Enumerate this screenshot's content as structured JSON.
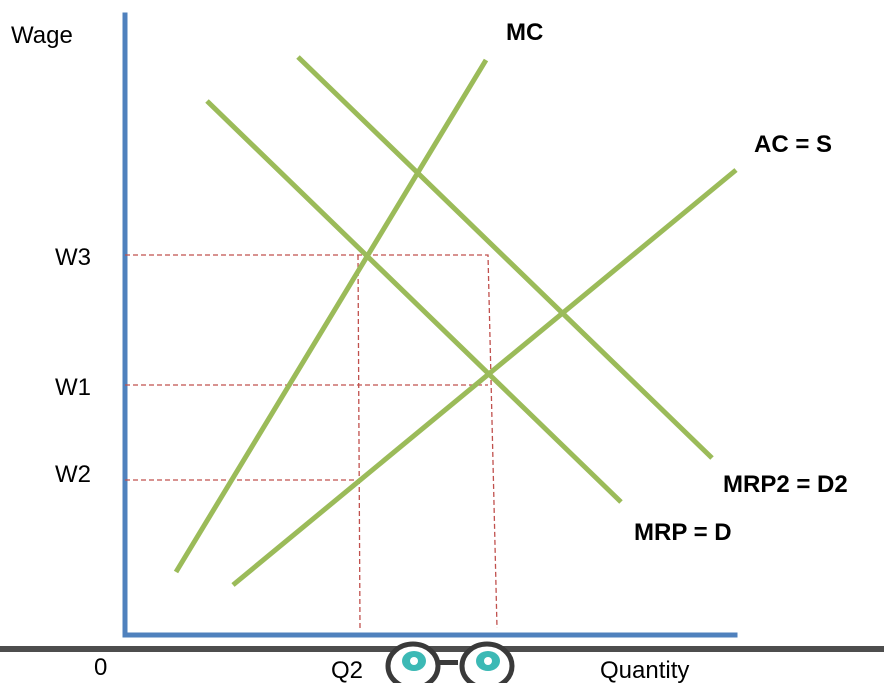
{
  "axes": {
    "y_label": "Wage",
    "x_label": "Quantity",
    "origin_label": "0"
  },
  "wage_levels": {
    "w3": "W3",
    "w1": "W1",
    "w2": "W2"
  },
  "quantity_levels": {
    "q2": "Q2"
  },
  "curves": {
    "mc": "MC",
    "ac": "AC = S",
    "mrp2": "MRP2 = D2",
    "mrp": "MRP = D"
  },
  "colors": {
    "axis": "#4f81bd",
    "curve": "#9bbb59",
    "guide": "#c0504d",
    "logo_iris": "#3cb9b5"
  },
  "logo": {
    "icon": "eyes-glasses-icon"
  }
}
